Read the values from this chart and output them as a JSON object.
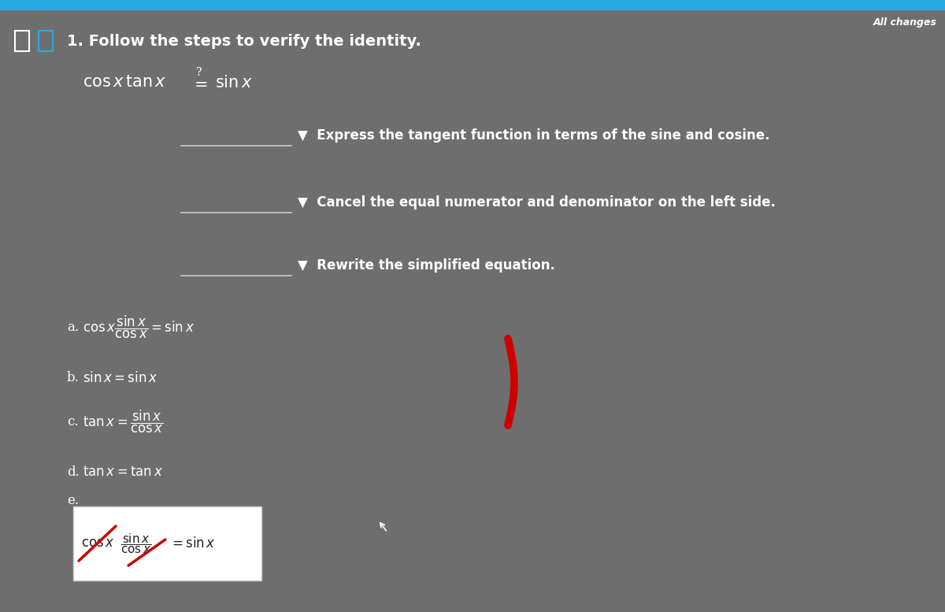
{
  "bg_color": "#6e6e6e",
  "top_bar_color": "#29ABE2",
  "title": "1. Follow the steps to verify the identity.",
  "title_color": "#ffffff",
  "title_fontsize": 14,
  "all_changes_text": "All changes",
  "all_changes_color": "#ffffff",
  "all_changes_fontsize": 9,
  "step1_label": "▼  Express the tangent function in terms of the sine and cosine.",
  "step2_label": "▼  Cancel the equal numerator and denominator on the left side.",
  "step3_label": "▼  Rewrite the simplified equation.",
  "steps_color": "#ffffff",
  "steps_fontsize": 12,
  "line_color": "#cccccc",
  "box_bg": "#ffffff",
  "box_text_color": "#222222",
  "red_color": "#cc0000",
  "icon_color": "#29ABE2"
}
